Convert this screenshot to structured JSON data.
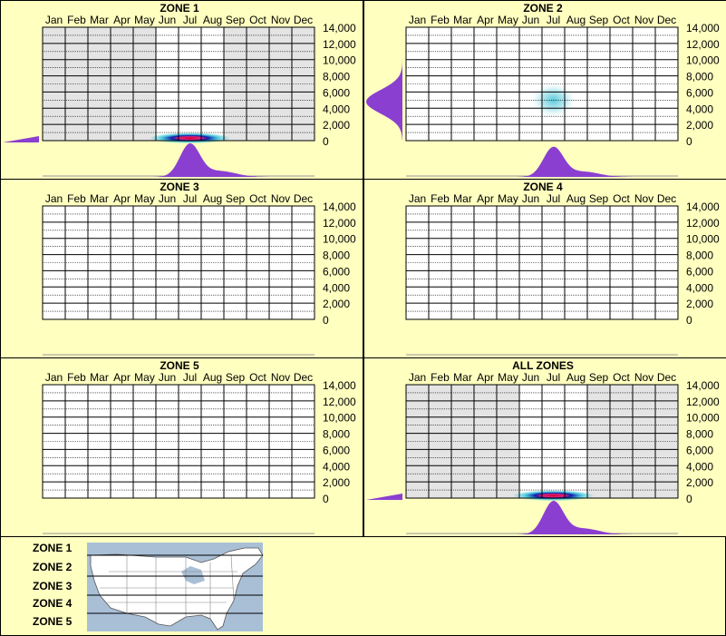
{
  "months": [
    "Jan",
    "Feb",
    "Mar",
    "Apr",
    "May",
    "Jun",
    "Jul",
    "Aug",
    "Sep",
    "Oct",
    "Nov",
    "Dec"
  ],
  "y_ticks": [
    "14,000",
    "12,000",
    "10,000",
    "8,000",
    "6,000",
    "4,000",
    "2,000",
    "0"
  ],
  "map_legend": [
    "ZONE 1",
    "ZONE 2",
    "ZONE 3",
    "ZONE 4",
    "ZONE 5"
  ],
  "colors": {
    "background": "#ffffc0",
    "shade": "#e4e4e4",
    "violet": "#8a3fd1",
    "heat_core": "#cc0033",
    "heat_mid": "#0a1fb0",
    "heat_outer": "#35c3d8"
  },
  "chart_data": [
    {
      "type": "heatmap",
      "title": "ZONE 1",
      "x_axis": "month",
      "y_range": [
        0,
        14000
      ],
      "grid": true,
      "shaded_months": [
        "Jan",
        "Feb",
        "Mar",
        "Apr",
        "May",
        "Sep",
        "Oct",
        "Nov",
        "Dec"
      ],
      "hotspot": {
        "month_center": 7.0,
        "elevation_center": 200,
        "intensity": "high"
      },
      "month_distribution": {
        "peak_month": 7.0,
        "relative_peak": 1.0
      },
      "elevation_distribution": {
        "peak_elevation": 0,
        "relative_peak": 0.15
      }
    },
    {
      "type": "heatmap",
      "title": "ZONE 2",
      "x_axis": "month",
      "y_range": [
        0,
        14000
      ],
      "grid": true,
      "shaded_months": [],
      "hotspot": {
        "month_center": 7.0,
        "elevation_center": 5000,
        "intensity": "low"
      },
      "month_distribution": {
        "peak_month": 7.0,
        "relative_peak": 0.9
      },
      "elevation_distribution": {
        "peak_elevation": 4800,
        "relative_peak": 1.0
      }
    },
    {
      "type": "heatmap",
      "title": "ZONE 3",
      "x_axis": "month",
      "y_range": [
        0,
        14000
      ],
      "grid": true,
      "shaded_months": []
    },
    {
      "type": "heatmap",
      "title": "ZONE 4",
      "x_axis": "month",
      "y_range": [
        0,
        14000
      ],
      "grid": true,
      "shaded_months": []
    },
    {
      "type": "heatmap",
      "title": "ZONE 5",
      "x_axis": "month",
      "y_range": [
        0,
        14000
      ],
      "grid": true,
      "shaded_months": []
    },
    {
      "type": "heatmap",
      "title": "ALL ZONES",
      "x_axis": "month",
      "y_range": [
        0,
        14000
      ],
      "grid": true,
      "shaded_months": [
        "Jan",
        "Feb",
        "Mar",
        "Apr",
        "May",
        "Sep",
        "Oct",
        "Nov",
        "Dec"
      ],
      "hotspot": {
        "month_center": 7.0,
        "elevation_center": 200,
        "intensity": "high"
      },
      "month_distribution": {
        "peak_month": 7.0,
        "relative_peak": 1.0
      },
      "elevation_distribution": {
        "peak_elevation": 0,
        "relative_peak": 0.15
      }
    }
  ]
}
